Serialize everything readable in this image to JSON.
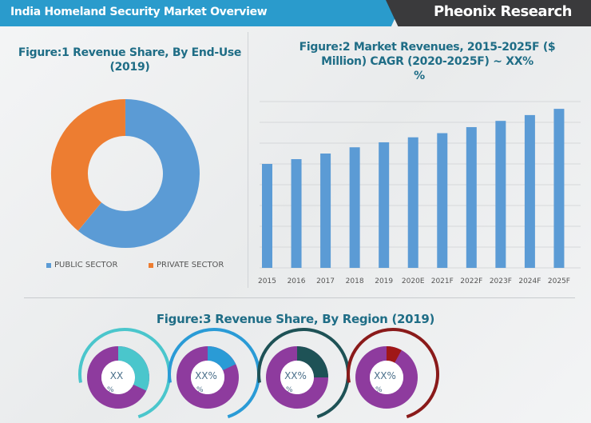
{
  "header": {
    "title": "India Homeland Security Market Overview",
    "brand": "Pheonix Research"
  },
  "chart_data": [
    {
      "type": "pie",
      "title": "Figure:1 Revenue Share, By End-Use (2019)",
      "donut": true,
      "categories": [
        "PUBLIC SECTOR",
        "PRIVATE SECTOR"
      ],
      "values": [
        61,
        39
      ],
      "colors": [
        "#5b9bd5",
        "#ed7d31"
      ],
      "legend": "bottom"
    },
    {
      "type": "bar",
      "title": "Figure:2 Market Revenues, 2015-2025F ($ Million) CAGR (2020-2025F) ~ XX%",
      "title_line3": "%",
      "categories": [
        "2015",
        "2016",
        "2017",
        "2018",
        "2019",
        "2020E",
        "2021F",
        "2022F",
        "2023F",
        "2024F",
        "2025F"
      ],
      "values": [
        5.0,
        5.23,
        5.5,
        5.8,
        6.04,
        6.28,
        6.48,
        6.77,
        7.07,
        7.35,
        7.65
      ],
      "ylim": [
        0,
        8
      ],
      "grid": true,
      "color": "#5b9bd5",
      "xlabel": "",
      "ylabel": ""
    },
    {
      "type": "pie",
      "title": "Figure:3 Revenue Share, By Region (2019)",
      "donut": true,
      "items": [
        {
          "label": "XX",
          "label2": "%",
          "share": 0.32,
          "color": "#4ac6cc",
          "base": "#8e3b9e"
        },
        {
          "label": "XX%",
          "label2": "%",
          "share": 0.18,
          "color": "#2a9bd6",
          "base": "#8e3b9e"
        },
        {
          "label": "XX%",
          "label2": "%",
          "share": 0.25,
          "color": "#1e5256",
          "base": "#8e3b9e"
        },
        {
          "label": "XX%",
          "label2": "%",
          "share": 0.08,
          "color": "#a01717",
          "base": "#8e3b9e"
        }
      ]
    }
  ]
}
